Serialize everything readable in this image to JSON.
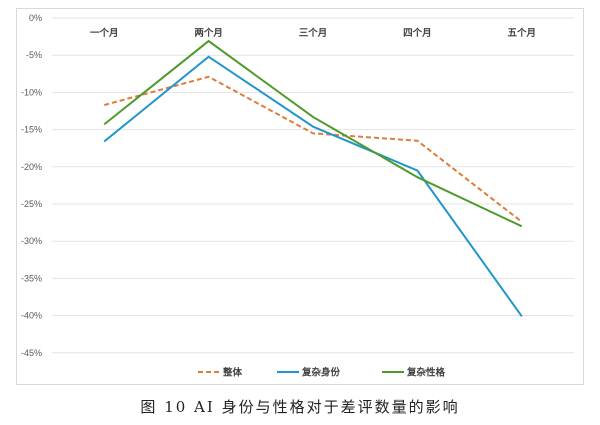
{
  "caption": "图 10 AI 身份与性格对于差评数量的影响",
  "chart_data": {
    "type": "line",
    "title": "",
    "xlabel": "",
    "ylabel": "",
    "categories": [
      "一个月",
      "两个月",
      "三个月",
      "四个月",
      "五个月"
    ],
    "x_axis_position": "top",
    "yticks": [
      "0%",
      "-5%",
      "-10%",
      "-15%",
      "-20%",
      "-25%",
      "-30%",
      "-35%",
      "-40%",
      "-45%"
    ],
    "ylim": [
      -45,
      0
    ],
    "grid": true,
    "legend_position": "bottom",
    "series": [
      {
        "name": "整体",
        "color": "#e07b39",
        "dash": "dashed",
        "values": [
          -11.7,
          -7.9,
          -15.5,
          -16.5,
          -27.4
        ]
      },
      {
        "name": "复杂身份",
        "color": "#1f96c9",
        "dash": "solid",
        "values": [
          -16.6,
          -5.2,
          -14.6,
          -20.5,
          -40.1
        ]
      },
      {
        "name": "复杂性格",
        "color": "#4e9a2a",
        "dash": "solid",
        "values": [
          -14.3,
          -3.1,
          -13.3,
          -21.4,
          -28.0
        ]
      }
    ]
  }
}
